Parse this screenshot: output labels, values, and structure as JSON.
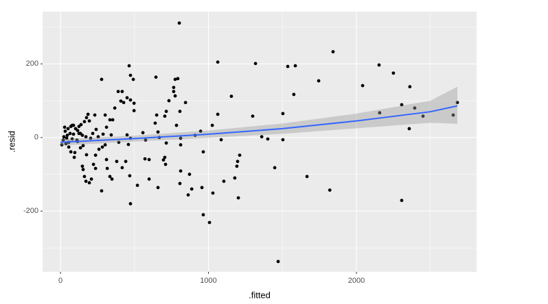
{
  "chart_data": {
    "type": "scatter",
    "x_label": ".fitted",
    "y_label": ".resid",
    "color": "#000000",
    "x": [
      803,
      1587,
      1842,
      1745,
      1318,
      1063,
      2153,
      2250,
      2361,
      2042,
      2157,
      2306,
      2394,
      2450,
      2357,
      2654,
      2682,
      2306,
      1820,
      1666,
      1471,
      1448,
      1503,
      1536,
      1503,
      1577,
      1360,
      1401,
      1299,
      1155,
      1211,
      1197,
      1192,
      1202,
      1178,
      1104,
      1086,
      1063,
      1030,
      1026,
      1007,
      965,
      965,
      956,
      947,
      910,
      887,
      863,
      872,
      845,
      807,
      812,
      812,
      812,
      784,
      793,
      775,
      765,
      775,
      765,
      807,
      733,
      705,
      715,
      650,
      640,
      659,
      668,
      715,
      705,
      710,
      696,
      659,
      645,
      575,
      599,
      571,
      599,
      557,
      520,
      492,
      473,
      464,
      497,
      473,
      450,
      427,
      408,
      417,
      390,
      473,
      497,
      473,
      450,
      459,
      468,
      441,
      394,
      417,
      380,
      367,
      353,
      343,
      278,
      302,
      334,
      311,
      288,
      302,
      283,
      278,
      316,
      334,
      348,
      260,
      241,
      232,
      223,
      218,
      204,
      195,
      186,
      176,
      162,
      153,
      148,
      162,
      172,
      195,
      176,
      135,
      135,
      116,
      102,
      79,
      79,
      70,
      56,
      46,
      28,
      19,
      9,
      32,
      51,
      65,
      88,
      97,
      93,
      37,
      23,
      111,
      125,
      139,
      209,
      237,
      255,
      311,
      237,
      153,
      172,
      70,
      88,
      125,
      116,
      56,
      42,
      148
    ],
    "values": [
      311,
      195,
      233,
      154,
      201,
      205,
      197,
      175,
      138,
      141,
      67,
      89,
      80,
      58,
      24,
      61,
      95,
      -171,
      -143,
      -106,
      -337,
      -82,
      65,
      193,
      -6,
      117,
      2,
      -4,
      58,
      112,
      -48,
      -65,
      -78,
      -164,
      -110,
      -119,
      -6,
      63,
      -151,
      33,
      -231,
      -210,
      -39,
      -136,
      17,
      6,
      -140,
      -156,
      -100,
      95,
      -125,
      -2,
      -91,
      -20,
      33,
      160,
      158,
      125,
      113,
      136,
      71,
      100,
      58,
      71,
      61,
      39,
      15,
      0,
      -15,
      -54,
      -73,
      -61,
      -136,
      164,
      -7,
      -113,
      -58,
      -60,
      13,
      -130,
      158,
      169,
      195,
      93,
      102,
      108,
      95,
      99,
      125,
      125,
      -180,
      73,
      -2,
      7,
      -19,
      -104,
      -65,
      -13,
      -82,
      -65,
      80,
      48,
      7,
      158,
      61,
      48,
      28,
      9,
      -20,
      -26,
      -145,
      -84,
      -106,
      -113,
      -32,
      22,
      61,
      -73,
      11,
      -2,
      45,
      63,
      54,
      43,
      -22,
      -78,
      -106,
      -119,
      -123,
      -47,
      -28,
      11,
      19,
      24,
      33,
      -4,
      -39,
      -26,
      6,
      28,
      -7,
      -20,
      17,
      24,
      11,
      9,
      -41,
      -54,
      -17,
      2,
      -7,
      11,
      35,
      -113,
      -48,
      2,
      -60,
      -84,
      -87,
      2,
      30,
      33,
      30,
      -11,
      -13,
      -2,
      6
    ],
    "smooth": {
      "color": "#3366FF",
      "x": [
        0,
        500,
        1000,
        1500,
        2000,
        2500,
        2682
      ],
      "values": [
        -13,
        -3,
        9,
        24,
        45,
        70,
        86
      ],
      "lower": [
        -22,
        -11,
        -1,
        10,
        25,
        40,
        37
      ],
      "upper": [
        -4,
        5,
        19,
        38,
        65,
        100,
        138
      ]
    },
    "xlim": [
      -121,
      2812
    ],
    "ylim": [
      -365,
      342
    ],
    "xticks": [
      0,
      1000,
      2000
    ],
    "yticks": [
      -200,
      0,
      200
    ],
    "grid": true
  }
}
